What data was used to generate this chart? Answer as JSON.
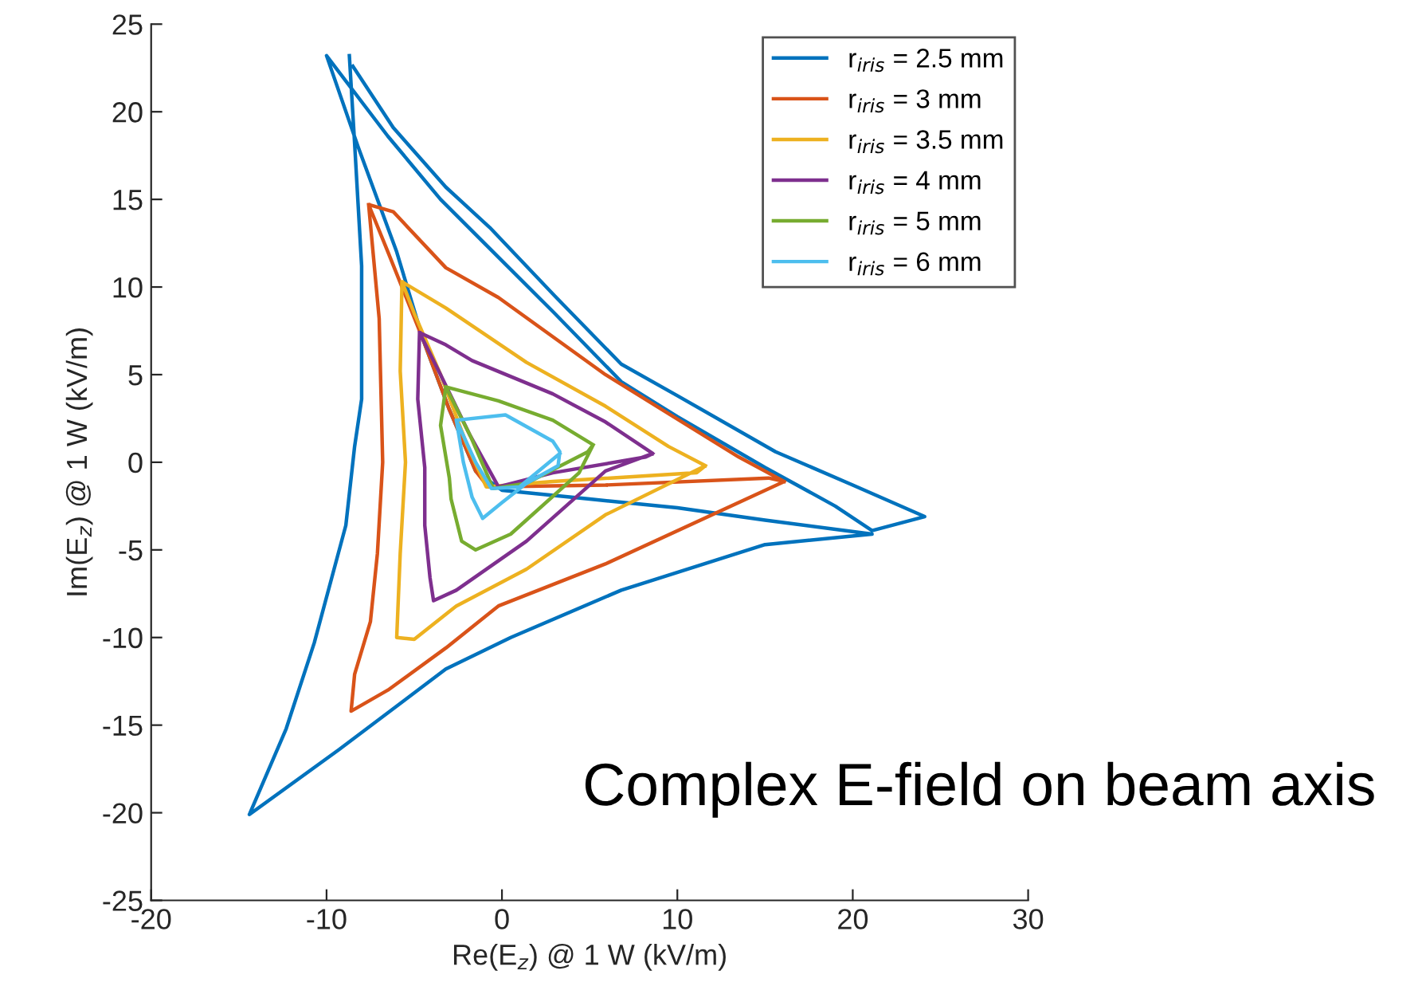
{
  "chart_data": {
    "type": "line",
    "xlabel": "Re(E$_{z}$) @ 1 W (kV/m)",
    "ylabel": "Im(E$_{z}$) @ 1 W (kV/m)",
    "annotations": [
      "Complex E-field on beam axis"
    ],
    "xlim": [
      -20,
      30
    ],
    "xticks": [
      -20,
      -10,
      0,
      10,
      20,
      30
    ],
    "ylim": [
      -25,
      25
    ],
    "yticks": [
      -25,
      -20,
      -15,
      -10,
      -5,
      0,
      5,
      10,
      15,
      20,
      25
    ],
    "grid": false,
    "legend": "top right",
    "marker": "none",
    "line_style": "solid",
    "series": [
      {
        "name": "r$_{iris}$ = 2.5 mm",
        "color": "#0072bd",
        "x": [
          -8.7,
          -8.4,
          -8.0,
          -8.0,
          -8.4,
          -8.9,
          -10.7,
          -12.3,
          -14.4,
          -9.3,
          -3.2,
          0.5,
          6.8,
          15.0,
          21.1,
          15.0,
          10.0,
          5.0,
          0.0,
          -1.5,
          -3.0,
          -4.5,
          -6.0,
          -8.2,
          -10.0,
          -6.5,
          -3.5,
          -1.0,
          3.0,
          6.8,
          10.0,
          15.0,
          19.0,
          21.1,
          24.1,
          20.0,
          15.6,
          10.0,
          6.8,
          3.0,
          -0.7,
          -3.2,
          -6.2,
          -8.5
        ],
        "values": [
          23.2,
          18.2,
          11.2,
          3.6,
          0.9,
          -3.6,
          -10.3,
          -15.2,
          -20.1,
          -16.4,
          -11.8,
          -10.0,
          -7.3,
          -4.7,
          -4.1,
          -3.3,
          -2.6,
          -2.1,
          -1.6,
          -0.5,
          3.0,
          7.0,
          12.0,
          18.0,
          23.2,
          18.6,
          15.0,
          12.5,
          8.5,
          4.6,
          2.6,
          -0.3,
          -2.5,
          -3.9,
          -3.1,
          -1.3,
          0.6,
          3.8,
          5.6,
          9.5,
          13.4,
          15.7,
          19.1,
          22.6
        ]
      },
      {
        "name": "r$_{iris}$ = 3 mm",
        "color": "#d95319",
        "x": [
          -7.6,
          -7.0,
          -6.8,
          -7.1,
          -7.5,
          -8.4,
          -8.6,
          -6.5,
          -3.2,
          -0.2,
          5.9,
          16.1,
          15.2,
          5.9,
          -0.8,
          -1.5,
          -3.0,
          -4.5,
          -6.5,
          -7.6,
          -6.2,
          -3.2,
          -0.2,
          5.9,
          13.5,
          16.1
        ],
        "values": [
          14.7,
          8.2,
          0.0,
          -5.2,
          -9.1,
          -12.1,
          -14.2,
          -13.0,
          -10.6,
          -8.2,
          -5.8,
          -1.1,
          -0.9,
          -1.3,
          -1.4,
          -0.5,
          3.0,
          7.0,
          12.0,
          14.7,
          14.3,
          11.1,
          9.4,
          5.0,
          0.3,
          -1.1
        ]
      },
      {
        "name": "r$_{iris}$ = 3.5 mm",
        "color": "#edb120",
        "x": [
          -5.7,
          -5.8,
          -5.5,
          -5.8,
          -6.0,
          -5.0,
          -2.6,
          1.4,
          5.9,
          11.6,
          11.1,
          2.9,
          -0.9,
          -2.0,
          -3.5,
          -5.0,
          -5.7,
          -3.2,
          1.4,
          5.9,
          9.5,
          11.6
        ],
        "values": [
          10.3,
          5.2,
          0.0,
          -5.2,
          -10.0,
          -10.1,
          -8.2,
          -6.1,
          -3.0,
          -0.2,
          -0.6,
          -1.1,
          -1.4,
          1.0,
          5.0,
          8.5,
          10.3,
          8.8,
          5.7,
          3.2,
          0.9,
          -0.2
        ]
      },
      {
        "name": "r$_{iris}$ = 4 mm",
        "color": "#7e2f8e",
        "x": [
          -4.7,
          -4.8,
          -4.4,
          -4.4,
          -4.1,
          -3.9,
          -2.6,
          1.4,
          5.9,
          8.6,
          8.2,
          2.9,
          -0.2,
          -1.8,
          -3.5,
          -4.7,
          -3.2,
          -1.7,
          2.9,
          5.9,
          8.6
        ],
        "values": [
          7.4,
          3.6,
          -0.3,
          -3.6,
          -6.6,
          -7.9,
          -7.3,
          -4.5,
          -0.5,
          0.5,
          0.3,
          -0.6,
          -1.4,
          1.5,
          5.0,
          7.4,
          6.7,
          5.8,
          3.9,
          2.3,
          0.5
        ]
      },
      {
        "name": "r$_{iris}$ = 5 mm",
        "color": "#77ac30",
        "x": [
          -3.2,
          -3.5,
          -3.0,
          -2.9,
          -2.3,
          -1.5,
          0.5,
          4.4,
          5.2,
          4.9,
          1.4,
          -0.5,
          -1.8,
          -3.2,
          -0.2,
          2.9,
          5.2
        ],
        "values": [
          4.3,
          2.1,
          -0.9,
          -2.1,
          -4.5,
          -5.0,
          -4.1,
          -0.6,
          1.0,
          0.6,
          -1.2,
          -1.5,
          1.5,
          4.3,
          3.5,
          2.4,
          1.0
        ]
      },
      {
        "name": "r$_{iris}$ = 6 mm",
        "color": "#4dbeee",
        "x": [
          -2.6,
          0.2,
          2.9,
          3.3,
          3.2,
          1.4,
          0.0,
          -1.1,
          -1.7,
          -2.2,
          -2.6,
          -1.5,
          -0.6,
          1.0,
          3.3
        ],
        "values": [
          2.4,
          2.7,
          1.2,
          0.6,
          -0.2,
          -1.2,
          -2.3,
          -3.2,
          -2.0,
          0.0,
          2.4,
          0.0,
          -1.5,
          -1.4,
          0.5
        ]
      }
    ]
  }
}
